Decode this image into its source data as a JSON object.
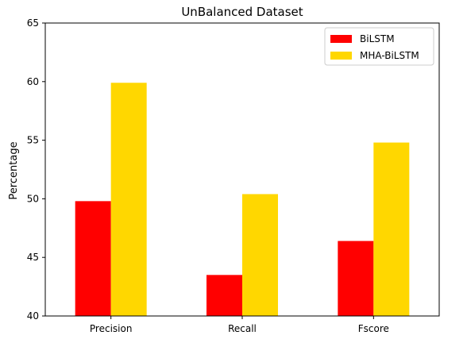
{
  "chart_data": {
    "type": "bar",
    "title": "UnBalanced Dataset",
    "xlabel": "",
    "ylabel": "Percentage",
    "categories": [
      "Precision",
      "Recall",
      "Fscore"
    ],
    "series": [
      {
        "name": "BiLSTM",
        "values": [
          49.8,
          43.5,
          46.4
        ],
        "color": "#ff0000"
      },
      {
        "name": "MHA-BiLSTM",
        "values": [
          59.9,
          50.4,
          54.8
        ],
        "color": "#ffd700"
      }
    ],
    "ylim": [
      40,
      65
    ],
    "yticks": [
      40,
      45,
      50,
      55,
      60,
      65
    ],
    "grid": false,
    "legend_position": "top-right"
  }
}
